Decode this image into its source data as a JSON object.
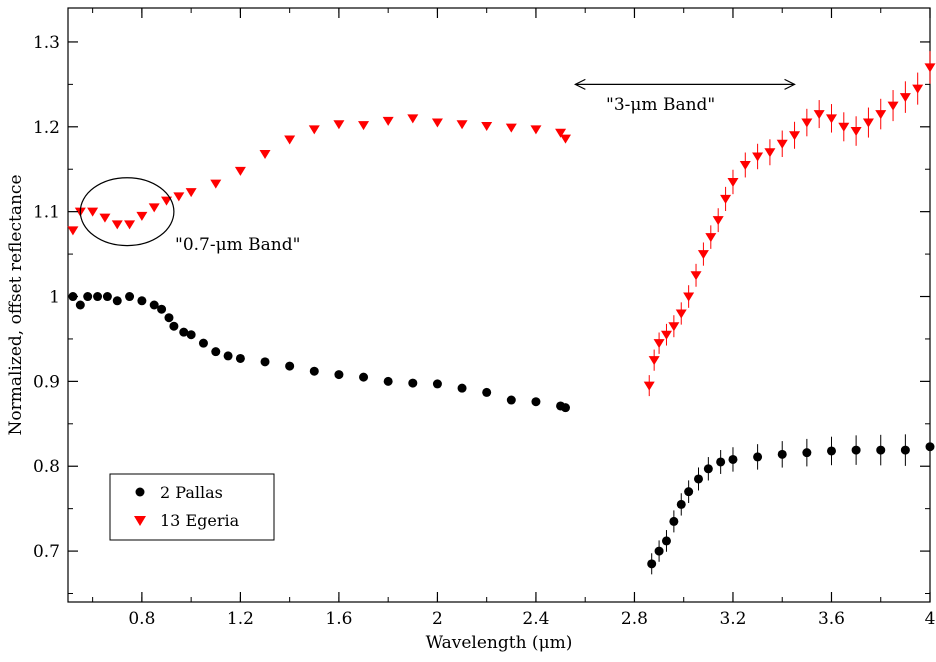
{
  "chart_data": {
    "type": "scatter",
    "title": "",
    "xlabel": "Wavelength (μm)",
    "ylabel": "Normalized, offset reflectance",
    "xlim": [
      0.5,
      4.0
    ],
    "ylim": [
      0.64,
      1.34
    ],
    "xticks": [
      0.8,
      1.2,
      1.6,
      2.0,
      2.4,
      2.8,
      3.2,
      3.6,
      4.0
    ],
    "xtick_labels": [
      "0.8",
      "1.2",
      "1.6",
      "2",
      "2.4",
      "2.8",
      "3.2",
      "3.6",
      "4"
    ],
    "yticks": [
      0.7,
      0.8,
      0.9,
      1.0,
      1.1,
      1.2,
      1.3
    ],
    "ytick_labels": [
      "0.7",
      "0.8",
      "0.9",
      "1",
      "1.1",
      "1.2",
      "1.3"
    ],
    "grid": false,
    "legend_position": "bottom-left",
    "annotations": {
      "band_07": "\"0.7-μm Band\"",
      "band_3": "\"3-μm Band\"",
      "band_3_range": [
        2.56,
        3.45
      ],
      "band_07_ellipse_center": [
        0.74,
        1.1
      ],
      "band_07_ellipse_radius": [
        0.19,
        0.04
      ]
    },
    "series": [
      {
        "name": "2 Pallas",
        "marker": "circle",
        "color": "#000000",
        "points": [
          [
            0.52,
            1.0
          ],
          [
            0.55,
            0.99
          ],
          [
            0.58,
            1.0
          ],
          [
            0.62,
            1.0
          ],
          [
            0.66,
            1.0
          ],
          [
            0.7,
            0.995
          ],
          [
            0.75,
            1.0
          ],
          [
            0.8,
            0.995
          ],
          [
            0.85,
            0.99
          ],
          [
            0.88,
            0.985
          ],
          [
            0.91,
            0.975
          ],
          [
            0.93,
            0.965
          ],
          [
            0.97,
            0.958
          ],
          [
            1.0,
            0.955
          ],
          [
            1.05,
            0.945
          ],
          [
            1.1,
            0.935
          ],
          [
            1.15,
            0.93
          ],
          [
            1.2,
            0.927
          ],
          [
            1.3,
            0.923
          ],
          [
            1.4,
            0.918
          ],
          [
            1.5,
            0.912
          ],
          [
            1.6,
            0.908
          ],
          [
            1.7,
            0.905
          ],
          [
            1.8,
            0.9
          ],
          [
            1.9,
            0.898
          ],
          [
            2.0,
            0.897
          ],
          [
            2.1,
            0.892
          ],
          [
            2.2,
            0.887
          ],
          [
            2.3,
            0.878
          ],
          [
            2.4,
            0.876
          ],
          [
            2.5,
            0.871
          ],
          [
            2.52,
            0.869
          ],
          [
            2.87,
            0.685
          ],
          [
            2.9,
            0.7
          ],
          [
            2.93,
            0.712
          ],
          [
            2.96,
            0.735
          ],
          [
            2.99,
            0.755
          ],
          [
            3.02,
            0.77
          ],
          [
            3.06,
            0.785
          ],
          [
            3.1,
            0.797
          ],
          [
            3.15,
            0.805
          ],
          [
            3.2,
            0.808
          ],
          [
            3.3,
            0.811
          ],
          [
            3.4,
            0.814
          ],
          [
            3.5,
            0.816
          ],
          [
            3.6,
            0.818
          ],
          [
            3.7,
            0.819
          ],
          [
            3.8,
            0.819
          ],
          [
            3.9,
            0.819
          ],
          [
            4.0,
            0.823
          ]
        ]
      },
      {
        "name": "13 Egeria",
        "marker": "triangle-down",
        "color": "#ff0000",
        "points": [
          [
            0.52,
            1.078
          ],
          [
            0.55,
            1.1
          ],
          [
            0.6,
            1.1
          ],
          [
            0.65,
            1.093
          ],
          [
            0.7,
            1.085
          ],
          [
            0.75,
            1.085
          ],
          [
            0.8,
            1.095
          ],
          [
            0.85,
            1.105
          ],
          [
            0.9,
            1.113
          ],
          [
            0.95,
            1.118
          ],
          [
            1.0,
            1.123
          ],
          [
            1.1,
            1.133
          ],
          [
            1.2,
            1.148
          ],
          [
            1.3,
            1.168
          ],
          [
            1.4,
            1.185
          ],
          [
            1.5,
            1.197
          ],
          [
            1.6,
            1.203
          ],
          [
            1.7,
            1.202
          ],
          [
            1.8,
            1.207
          ],
          [
            1.9,
            1.21
          ],
          [
            2.0,
            1.205
          ],
          [
            2.1,
            1.203
          ],
          [
            2.2,
            1.201
          ],
          [
            2.3,
            1.199
          ],
          [
            2.4,
            1.197
          ],
          [
            2.5,
            1.193
          ],
          [
            2.52,
            1.186
          ],
          [
            2.86,
            0.895
          ],
          [
            2.88,
            0.925
          ],
          [
            2.9,
            0.945
          ],
          [
            2.93,
            0.955
          ],
          [
            2.96,
            0.965
          ],
          [
            2.99,
            0.98
          ],
          [
            3.02,
            1.0
          ],
          [
            3.05,
            1.025
          ],
          [
            3.08,
            1.05
          ],
          [
            3.11,
            1.07
          ],
          [
            3.14,
            1.09
          ],
          [
            3.17,
            1.115
          ],
          [
            3.2,
            1.135
          ],
          [
            3.25,
            1.155
          ],
          [
            3.3,
            1.165
          ],
          [
            3.35,
            1.17
          ],
          [
            3.4,
            1.18
          ],
          [
            3.45,
            1.19
          ],
          [
            3.5,
            1.205
          ],
          [
            3.55,
            1.215
          ],
          [
            3.6,
            1.21
          ],
          [
            3.65,
            1.2
          ],
          [
            3.7,
            1.195
          ],
          [
            3.75,
            1.205
          ],
          [
            3.8,
            1.215
          ],
          [
            3.85,
            1.225
          ],
          [
            3.9,
            1.235
          ],
          [
            3.95,
            1.245
          ],
          [
            4.0,
            1.27
          ]
        ]
      }
    ]
  }
}
